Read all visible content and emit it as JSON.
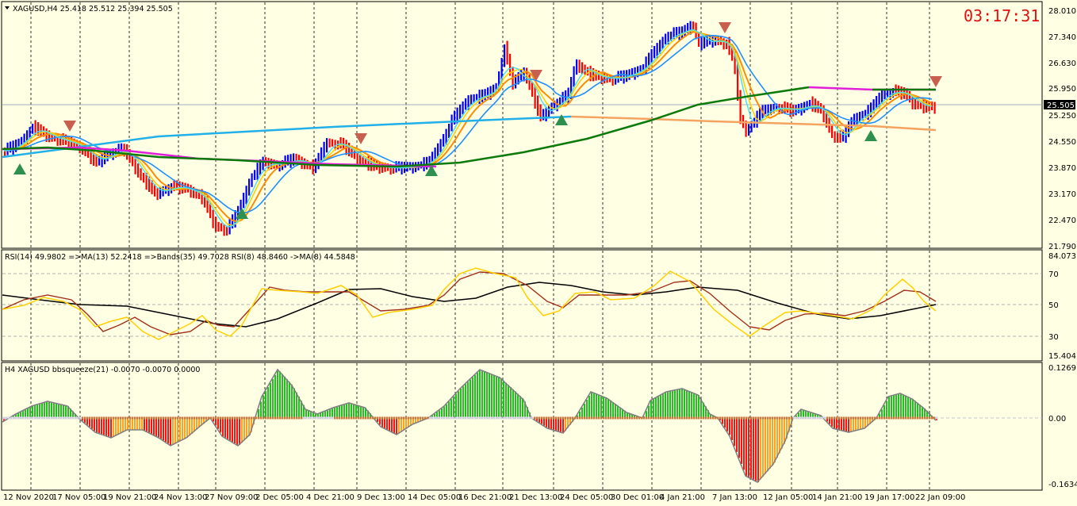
{
  "main_panel": {
    "title": "XAGUSD,H4  25.418 25.512 25.394 25.505",
    "clock": "03:17:31",
    "current_price": "25.505",
    "price_ticks": [
      "28.010",
      "27.340",
      "26.630",
      "25.950",
      "25.250",
      "24.550",
      "23.870",
      "23.170",
      "22.470",
      "21.790"
    ]
  },
  "rsi_panel": {
    "title": "RSI(14) 49.9802  =>MA(13) 52.2418  =>Bands(35) 49.7028  RSI(8) 48.8460  ->MA(8) 44.5848",
    "ticks": [
      "84.073",
      "70",
      "50",
      "30",
      "15.4041"
    ]
  },
  "squeeze_panel": {
    "title": "H4 XAGUSD bbsqueeze(21) -0.0070 -0.0070 0.0000",
    "ticks": [
      "0.1269",
      "0.00",
      "-0.1634"
    ]
  },
  "time_axis": [
    "12 Nov 2020",
    "17 Nov 05:00",
    "19 Nov 21:00",
    "24 Nov 13:00",
    "27 Nov 09:00",
    "2 Dec 05:00",
    "4 Dec 21:00",
    "9 Dec 13:00",
    "14 Dec 05:00",
    "16 Dec 21:00",
    "21 Dec 13:00",
    "24 Dec 05:00",
    "30 Dec 01:00",
    "4 Jan 21:00",
    "7 Jan 13:00",
    "12 Jan 05:00",
    "14 Jan 21:00",
    "19 Jan 17:00",
    "22 Jan 09:00"
  ],
  "colors": {
    "background": "#ffffe4",
    "bull_bar": "#0000ff",
    "bear_bar": "#ff0000",
    "ma_green": "#0b7a0b",
    "ma_skyblue": "#22b0e8",
    "ma_magenta": "#e020d8",
    "ma_orange": "#ff8c00",
    "ma_peach": "#f4a460",
    "rsi_yellow": "#ffd000",
    "rsi_brown": "#a0301a",
    "rsi_black": "#000000",
    "sq_green": "#20c020",
    "sq_red": "#ff1010",
    "sq_orange": "#ffa020",
    "clock": "#e01010"
  }
}
